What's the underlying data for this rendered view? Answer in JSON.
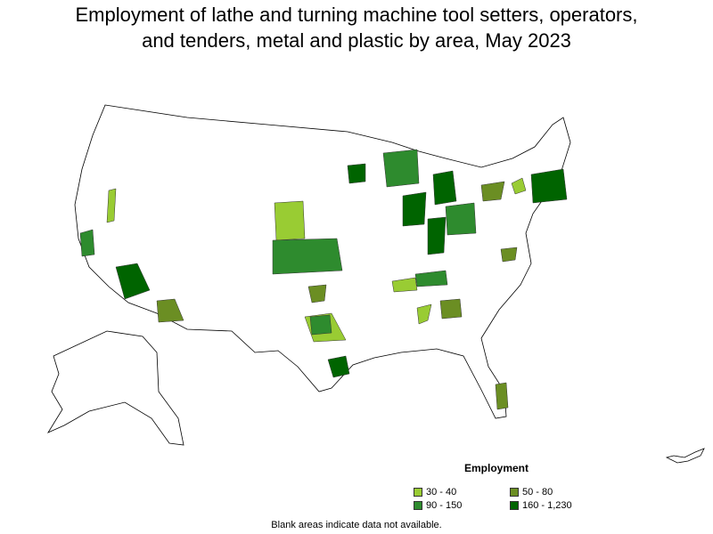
{
  "title": {
    "line1": "Employment of lathe and turning machine tool setters, operators,",
    "line2": "and tenders, metal and plastic by area, May 2023"
  },
  "legend": {
    "title": "Employment",
    "items": [
      {
        "label": "30 - 40",
        "color": "#99cc33"
      },
      {
        "label": "50 - 80",
        "color": "#6b8e23"
      },
      {
        "label": "90 - 150",
        "color": "#2e8b2e"
      },
      {
        "label": "160 - 1,230",
        "color": "#006400"
      }
    ]
  },
  "note": "Blank areas indicate data not available.",
  "chart_data": {
    "type": "choropleth",
    "region": "United States (metropolitan and nonmetropolitan areas)",
    "bins": [
      "30 - 40",
      "50 - 80",
      "90 - 150",
      "160 - 1,230"
    ],
    "blank_meaning": "data not available"
  }
}
